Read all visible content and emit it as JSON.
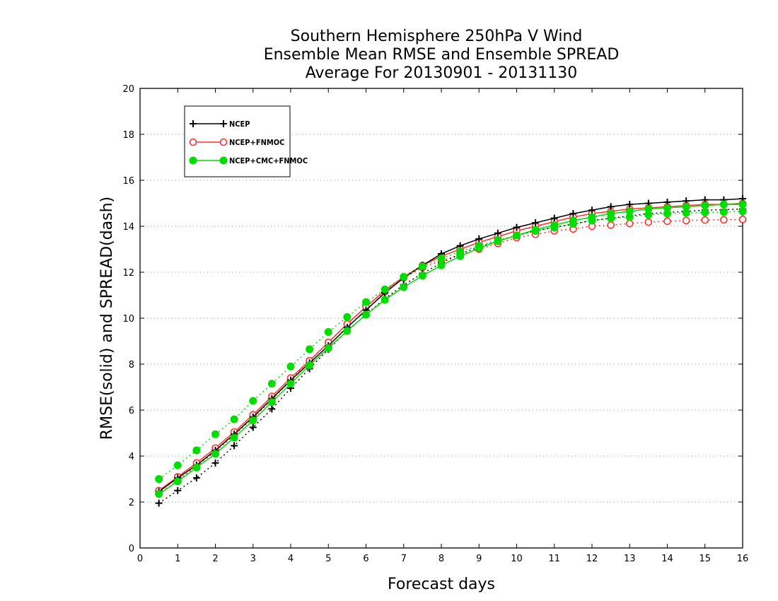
{
  "chart_data": {
    "type": "line",
    "title": [
      "Southern Hemisphere 250hPa V Wind",
      "Ensemble Mean RMSE and Ensemble SPREAD",
      "Average For 20130901 - 20131130"
    ],
    "xlabel": "Forecast days",
    "ylabel": "RMSE(solid) and SPREAD(dash)",
    "xlim": [
      0,
      16
    ],
    "ylim": [
      0,
      20
    ],
    "xticks": [
      0,
      1,
      2,
      3,
      4,
      5,
      6,
      7,
      8,
      9,
      10,
      11,
      12,
      13,
      14,
      15,
      16
    ],
    "yticks": [
      0,
      2,
      4,
      6,
      8,
      10,
      12,
      14,
      16,
      18,
      20
    ],
    "grid": "horizontal-dotted",
    "legend_position": "top-left",
    "x": [
      0.5,
      1,
      1.5,
      2,
      2.5,
      3,
      3.5,
      4,
      4.5,
      5,
      5.5,
      6,
      6.5,
      7,
      7.5,
      8,
      8.5,
      9,
      9.5,
      10,
      10.5,
      11,
      11.5,
      12,
      12.5,
      13,
      13.5,
      14,
      14.5,
      15,
      15.5,
      16
    ],
    "series": [
      {
        "name": "NCEP",
        "color": "#000000",
        "marker": "plus",
        "rmse": [
          2.45,
          3.05,
          3.6,
          4.25,
          4.95,
          5.7,
          6.5,
          7.3,
          8.05,
          8.8,
          9.6,
          10.35,
          11.1,
          11.75,
          12.3,
          12.8,
          13.15,
          13.45,
          13.7,
          13.95,
          14.15,
          14.35,
          14.55,
          14.7,
          14.85,
          14.95,
          15.0,
          15.05,
          15.1,
          15.15,
          15.15,
          15.2
        ],
        "spread": [
          1.95,
          2.5,
          3.05,
          3.7,
          4.45,
          5.25,
          6.05,
          6.95,
          7.8,
          8.65,
          9.45,
          10.15,
          10.85,
          11.45,
          11.95,
          12.4,
          12.8,
          13.1,
          13.35,
          13.6,
          13.8,
          13.95,
          14.1,
          14.25,
          14.35,
          14.45,
          14.55,
          14.6,
          14.65,
          14.7,
          14.72,
          14.75
        ]
      },
      {
        "name": "NCEP+FNMOC",
        "color": "#ff3030",
        "marker": "open-circle",
        "rmse": [
          2.5,
          3.1,
          3.7,
          4.35,
          5.05,
          5.8,
          6.6,
          7.4,
          8.15,
          8.95,
          9.75,
          10.5,
          11.2,
          11.8,
          12.3,
          12.7,
          13.0,
          13.3,
          13.55,
          13.8,
          14.0,
          14.2,
          14.4,
          14.55,
          14.65,
          14.75,
          14.8,
          14.85,
          14.9,
          14.95,
          14.95,
          15.0
        ],
        "spread": [
          2.35,
          2.95,
          3.55,
          4.2,
          4.9,
          5.65,
          6.45,
          7.3,
          8.15,
          8.95,
          9.75,
          10.5,
          11.15,
          11.75,
          12.2,
          12.5,
          12.75,
          13.0,
          13.25,
          13.5,
          13.65,
          13.8,
          13.88,
          14.0,
          14.05,
          14.12,
          14.18,
          14.22,
          14.25,
          14.27,
          14.28,
          14.3
        ]
      },
      {
        "name": "NCEP+CMC+FNMOC",
        "color": "#00dd00",
        "marker": "filled-circle",
        "rmse": [
          2.35,
          2.9,
          3.5,
          4.1,
          4.8,
          5.55,
          6.35,
          7.15,
          7.95,
          8.7,
          9.45,
          10.15,
          10.8,
          11.35,
          11.85,
          12.3,
          12.7,
          13.05,
          13.35,
          13.6,
          13.85,
          14.05,
          14.25,
          14.4,
          14.55,
          14.65,
          14.75,
          14.8,
          14.85,
          14.9,
          14.95,
          14.95
        ],
        "spread": [
          3.0,
          3.6,
          4.25,
          4.95,
          5.6,
          6.4,
          7.15,
          7.9,
          8.65,
          9.4,
          10.05,
          10.7,
          11.25,
          11.8,
          12.25,
          12.6,
          12.9,
          13.15,
          13.4,
          13.6,
          13.8,
          13.95,
          14.1,
          14.25,
          14.35,
          14.4,
          14.5,
          14.55,
          14.58,
          14.6,
          14.62,
          14.65
        ]
      }
    ]
  }
}
